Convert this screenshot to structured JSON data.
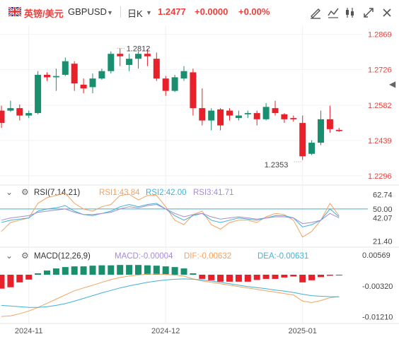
{
  "header": {
    "pair_cn": "英镑/美元",
    "pair_code": "GBPUSD",
    "timeframe": "日K",
    "price": "1.2477",
    "change": "+0.0000",
    "change_pct": "+0.00%"
  },
  "icons": [
    "uk-flag-icon",
    "dropdown-caret-icon",
    "draw-tool-icon",
    "indicator-icon",
    "candle-type-icon",
    "expand-icon",
    "close-icon",
    "side-collapse-icon"
  ],
  "colors": {
    "up": "#1a8f6f",
    "down": "#e8202a",
    "rsi1": "#f5a25d",
    "rsi2": "#3fb1d9",
    "rsi3": "#a58bd6",
    "dif": "#f5a25d",
    "dea": "#3fb1d9",
    "ref_line": "#3fb1d9"
  },
  "chart_data": [
    {
      "type": "candlestick",
      "title": "GBPUSD 日K",
      "price_axis_labels": [
        "1.2869",
        "1.2726",
        "1.2582",
        "1.2439",
        "1.2296"
      ],
      "ylim": [
        1.227,
        1.2905
      ],
      "x_tick_labels": [
        "2024-11",
        "2024-12",
        "2025-01"
      ],
      "annotations": [
        {
          "label": "1.2812",
          "value": 1.2812
        },
        {
          "label": "1.2353",
          "value": 1.2353
        }
      ],
      "candles": [
        [
          1.256,
          1.258,
          1.249,
          1.251
        ],
        [
          1.256,
          1.26,
          1.2555,
          1.257
        ],
        [
          1.257,
          1.2585,
          1.252,
          1.254
        ],
        [
          1.254,
          1.256,
          1.253,
          1.255
        ],
        [
          1.255,
          1.272,
          1.2545,
          1.2705
        ],
        [
          1.2705,
          1.2715,
          1.268,
          1.2695
        ],
        [
          1.2695,
          1.273,
          1.264,
          1.27
        ],
        [
          1.2705,
          1.2775,
          1.27,
          1.276
        ],
        [
          1.275,
          1.276,
          1.264,
          1.267
        ],
        [
          1.2665,
          1.269,
          1.263,
          1.265
        ],
        [
          1.2655,
          1.271,
          1.263,
          1.269
        ],
        [
          1.269,
          1.273,
          1.2685,
          1.272
        ],
        [
          1.272,
          1.28,
          1.271,
          1.279
        ],
        [
          1.279,
          1.2812,
          1.274,
          1.278
        ],
        [
          1.2745,
          1.279,
          1.272,
          1.277
        ],
        [
          1.277,
          1.28,
          1.273,
          1.279
        ],
        [
          1.279,
          1.281,
          1.274,
          1.278
        ],
        [
          1.277,
          1.2795,
          1.268,
          1.269
        ],
        [
          1.269,
          1.27,
          1.262,
          1.264
        ],
        [
          1.264,
          1.2705,
          1.2635,
          1.2695
        ],
        [
          1.269,
          1.274,
          1.268,
          1.272
        ],
        [
          1.2715,
          1.273,
          1.254,
          1.257
        ],
        [
          1.257,
          1.265,
          1.25,
          1.252
        ],
        [
          1.252,
          1.257,
          1.248,
          1.256
        ],
        [
          1.2565,
          1.257,
          1.248,
          1.25
        ],
        [
          1.256,
          1.257,
          1.252,
          1.254
        ],
        [
          1.253,
          1.256,
          1.252,
          1.254
        ],
        [
          1.2545,
          1.256,
          1.253,
          1.255
        ],
        [
          1.255,
          1.256,
          1.25,
          1.2525
        ],
        [
          1.2525,
          1.259,
          1.252,
          1.2575
        ],
        [
          1.257,
          1.26,
          1.254,
          1.255
        ],
        [
          1.2545,
          1.255,
          1.251,
          1.2525
        ],
        [
          1.253,
          1.254,
          1.2515,
          1.2525
        ],
        [
          1.251,
          1.254,
          1.236,
          1.2375
        ],
        [
          1.2385,
          1.244,
          1.238,
          1.243
        ],
        [
          1.243,
          1.256,
          1.242,
          1.2525
        ],
        [
          1.2525,
          1.258,
          1.247,
          1.2485
        ],
        [
          1.2482,
          1.249,
          1.2474,
          1.2477
        ]
      ]
    },
    {
      "type": "line",
      "title": "RSI(7,14,21)",
      "series_labels": [
        {
          "name": "RSI1",
          "value": "43.84"
        },
        {
          "name": "RSI2",
          "value": "42.00"
        },
        {
          "name": "RSI3",
          "value": "41.71"
        }
      ],
      "axis_labels": [
        "62.74",
        "50.00",
        "42.07",
        "21.40"
      ],
      "ylim": [
        16,
        70
      ],
      "ref_line": 50.0,
      "series": [
        {
          "name": "RSI1",
          "values": [
            30,
            38,
            40,
            42,
            55,
            60,
            62,
            64,
            55,
            50,
            48,
            52,
            54,
            62,
            63,
            58,
            62,
            62,
            52,
            40,
            36,
            45,
            48,
            36,
            32,
            38,
            40,
            40,
            38,
            43,
            46,
            45,
            40,
            25,
            30,
            40,
            55,
            44
          ]
        },
        {
          "name": "RSI2",
          "values": [
            38,
            40,
            41,
            42,
            48,
            50,
            51,
            53,
            48,
            45,
            44,
            46,
            48,
            52,
            54,
            52,
            54,
            55,
            50,
            44,
            40,
            44,
            46,
            40,
            38,
            40,
            42,
            41,
            40,
            42,
            44,
            44,
            42,
            34,
            36,
            40,
            50,
            43
          ]
        },
        {
          "name": "RSI3",
          "values": [
            40,
            42,
            43,
            44,
            47,
            48,
            49,
            50,
            47,
            45,
            45,
            46,
            47,
            50,
            52,
            51,
            53,
            54,
            50,
            46,
            43,
            45,
            46,
            43,
            41,
            42,
            43,
            42,
            41,
            42,
            43,
            43,
            42,
            37,
            38,
            40,
            46,
            42
          ]
        }
      ]
    },
    {
      "type": "bar",
      "title": "MACD(12,26,9)",
      "series_labels": [
        {
          "name": "MACD",
          "value": "-0.00004"
        },
        {
          "name": "DIF",
          "value": "-0.00632"
        },
        {
          "name": "DEA",
          "value": "-0.00631"
        }
      ],
      "axis_labels": [
        "0.00569",
        "-0.00320",
        "-0.01210"
      ],
      "ylim": [
        -0.014,
        0.0075
      ],
      "histogram": [
        -0.004,
        -0.0036,
        -0.0022,
        -0.0014,
        0.0004,
        0.0012,
        0.0018,
        0.0022,
        0.0024,
        0.0024,
        0.0026,
        0.0027,
        0.0027,
        0.0028,
        0.0028,
        0.0028,
        0.0027,
        0.0026,
        0.0024,
        0.0022,
        0.0018,
        0.0004,
        -0.0012,
        -0.0016,
        -0.002,
        -0.002,
        -0.002,
        -0.002,
        -0.0015,
        -0.0012,
        -0.0012,
        -0.0008,
        -0.0005,
        -0.0022,
        -0.0016,
        -0.0007,
        -0.0003,
        -4e-05
      ],
      "series": [
        {
          "name": "DIF",
          "values": [
            -0.012,
            -0.0118,
            -0.0112,
            -0.0104,
            -0.0094,
            -0.0082,
            -0.007,
            -0.0058,
            -0.0046,
            -0.0038,
            -0.003,
            -0.0022,
            -0.0014,
            -0.0008,
            -0.0004,
            -0.0001,
            0.0002,
            0.0002,
            0.0001,
            -0.0001,
            -0.0004,
            -0.0012,
            -0.0018,
            -0.0022,
            -0.0026,
            -0.003,
            -0.0034,
            -0.0038,
            -0.0042,
            -0.0046,
            -0.005,
            -0.0054,
            -0.0058,
            -0.0076,
            -0.008,
            -0.0074,
            -0.0066,
            -0.00632
          ]
        },
        {
          "name": "DEA",
          "values": [
            -0.0088,
            -0.009,
            -0.0092,
            -0.0094,
            -0.0094,
            -0.0092,
            -0.0088,
            -0.0083,
            -0.0076,
            -0.0068,
            -0.006,
            -0.0052,
            -0.0045,
            -0.0038,
            -0.0032,
            -0.0027,
            -0.0022,
            -0.0018,
            -0.0015,
            -0.0013,
            -0.0012,
            -0.0013,
            -0.0015,
            -0.0018,
            -0.0022,
            -0.0026,
            -0.003,
            -0.0034,
            -0.0037,
            -0.004,
            -0.0044,
            -0.0047,
            -0.0051,
            -0.0056,
            -0.006,
            -0.0062,
            -0.0063,
            -0.00631
          ]
        }
      ]
    }
  ]
}
